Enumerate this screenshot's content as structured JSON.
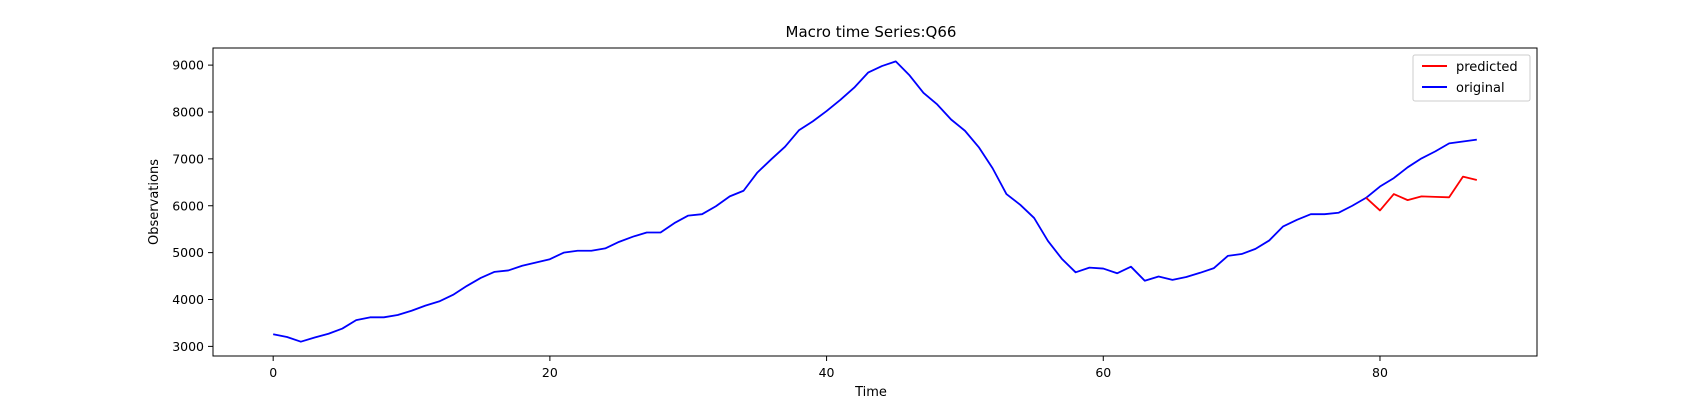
{
  "chart_data": {
    "type": "line",
    "title": "Macro time Series:Q66",
    "xlabel": "Time",
    "ylabel": "Observations",
    "xlim": [
      -4.35,
      91.35
    ],
    "ylim": [
      2795,
      9365
    ],
    "xticks": [
      0,
      20,
      40,
      60,
      80
    ],
    "yticks": [
      3000,
      4000,
      5000,
      6000,
      7000,
      8000,
      9000
    ],
    "grid": false,
    "legend_position": "top-right",
    "series": [
      {
        "name": "predicted",
        "color": "#ff0000",
        "x": [
          79,
          80,
          81,
          82,
          83,
          84,
          85,
          86,
          87
        ],
        "y": [
          6170,
          5900,
          6250,
          6120,
          6200,
          6190,
          6180,
          6620,
          6550
        ]
      },
      {
        "name": "original",
        "color": "#0000ff",
        "x": [
          0,
          1,
          2,
          3,
          4,
          5,
          6,
          7,
          8,
          9,
          10,
          11,
          12,
          13,
          14,
          15,
          16,
          17,
          18,
          19,
          20,
          21,
          22,
          23,
          24,
          25,
          26,
          27,
          28,
          29,
          30,
          31,
          32,
          33,
          34,
          35,
          36,
          37,
          38,
          39,
          40,
          41,
          42,
          43,
          44,
          45,
          46,
          47,
          48,
          49,
          50,
          51,
          52,
          53,
          54,
          55,
          56,
          57,
          58,
          59,
          60,
          61,
          62,
          63,
          64,
          65,
          66,
          67,
          68,
          69,
          70,
          71,
          72,
          73,
          74,
          75,
          76,
          77,
          78,
          79,
          80,
          81,
          82,
          83,
          84,
          85,
          86,
          87
        ],
        "y": [
          3260,
          3200,
          3100,
          3190,
          3270,
          3380,
          3560,
          3620,
          3620,
          3670,
          3760,
          3870,
          3960,
          4100,
          4290,
          4460,
          4590,
          4620,
          4720,
          4790,
          4860,
          5000,
          5040,
          5040,
          5090,
          5230,
          5340,
          5430,
          5430,
          5630,
          5790,
          5820,
          5990,
          6200,
          6320,
          6710,
          6990,
          7260,
          7610,
          7800,
          8020,
          8260,
          8520,
          8840,
          8980,
          9080,
          8780,
          8410,
          8160,
          7840,
          7600,
          7250,
          6800,
          6250,
          6020,
          5740,
          5250,
          4870,
          4580,
          4680,
          4660,
          4560,
          4700,
          4400,
          4490,
          4420,
          4480,
          4570,
          4670,
          4930,
          4970,
          5080,
          5260,
          5560,
          5700,
          5820,
          5820,
          5850,
          6000,
          6170,
          6410,
          6590,
          6820,
          7010,
          7160,
          7330,
          7370,
          7410
        ]
      }
    ]
  }
}
